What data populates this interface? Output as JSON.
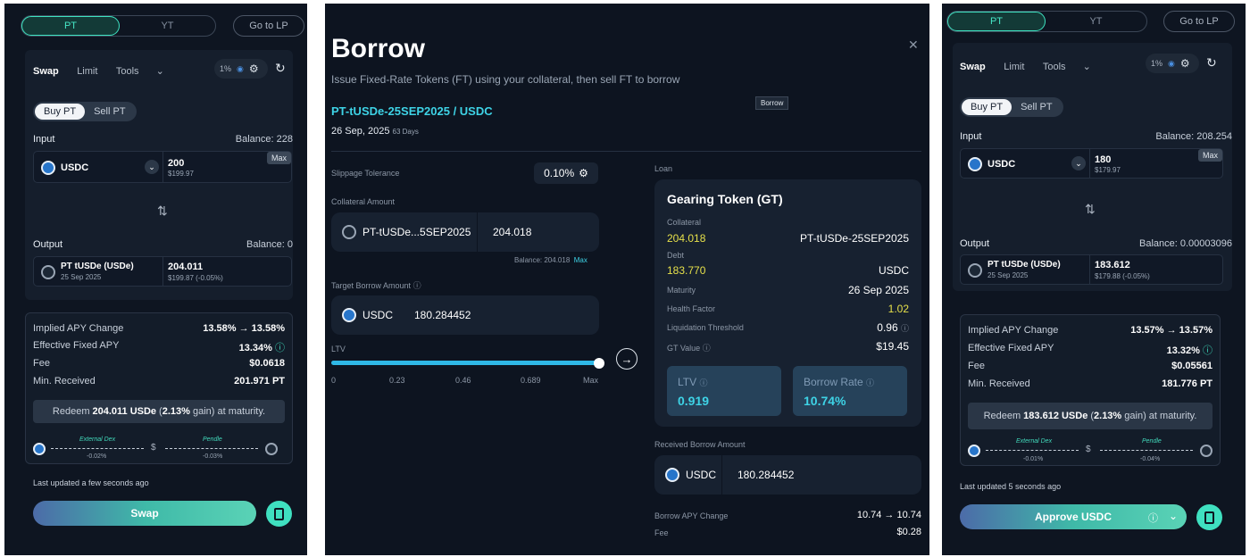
{
  "left": {
    "toggle": {
      "pt": "PT",
      "yt": "YT"
    },
    "go_lp": "Go to LP",
    "tabs": [
      "Swap",
      "Limit",
      "Tools"
    ],
    "slippage": "1%",
    "seg": [
      "Buy PT",
      "Sell PT"
    ],
    "input_label": "Input",
    "input_balance": "Balance: 228",
    "input_token": "USDC",
    "input_amount": "200",
    "input_usd": "$199.97",
    "max": "Max",
    "output_label": "Output",
    "output_balance": "Balance: 0",
    "output_token": "PT tUSDe (USDe)",
    "output_date": "25 Sep 2025",
    "output_amount": "204.011",
    "output_usd": "$199.87 (-0.05%)",
    "rows": [
      {
        "k": "Implied APY Change",
        "v": "13.58% → 13.58%"
      },
      {
        "k": "Effective Fixed APY",
        "v": "13.34%"
      },
      {
        "k": "Fee",
        "v": "$0.0618"
      },
      {
        "k": "Min. Received",
        "v": "201.971 PT"
      }
    ],
    "redeem_pre": "Redeem",
    "redeem_amt": "204.011 USDe",
    "redeem_mid": "(",
    "redeem_gain": "2.13%",
    "redeem_post": "gain) at maturity.",
    "route1": "External Dex",
    "route1_pct": "-0.02%",
    "route2": "Pendle",
    "route2_pct": "-0.03%",
    "updated": "Last updated a few seconds ago",
    "button": "Swap"
  },
  "mid": {
    "title": "Borrow",
    "subtitle": "Issue Fixed-Rate Tokens (FT) using your collateral, then sell FT to borrow",
    "tooltip": "Borrow",
    "pair": "PT-tUSDe-25SEP2025 / USDC",
    "date": "26 Sep, 2025",
    "days": "63 Days",
    "slippage_label": "Slippage Tolerance",
    "slippage_value": "0.10%",
    "collateral_label": "Collateral Amount",
    "collateral_token": "PT-tUSDe...5SEP2025",
    "collateral_amount": "204.018",
    "collateral_balance": "Balance: 204.018",
    "collateral_max": "Max",
    "target_label": "Target Borrow Amount",
    "target_token": "USDC",
    "target_amount": "180.284452",
    "ltv_label": "LTV",
    "ticks": [
      "0",
      "0.23",
      "0.46",
      "0.689",
      "Max"
    ],
    "ltv_slider_fraction": 1.0,
    "loan_label": "Loan",
    "gt_title": "Gearing Token (GT)",
    "collateral_k": "Collateral",
    "collateral_v": "204.018",
    "collateral_t": "PT-tUSDe-25SEP2025",
    "debt_k": "Debt",
    "debt_v": "183.770",
    "debt_t": "USDC",
    "details": [
      {
        "k": "Maturity",
        "v": "26 Sep 2025"
      },
      {
        "k": "Health Factor",
        "v": "1.02"
      },
      {
        "k": "Liquidation Threshold",
        "v": "0.96"
      },
      {
        "k": "GT Value",
        "v": "$19.45"
      }
    ],
    "ltv_box_label": "LTV",
    "ltv_box_value": "0.919",
    "rate_box_label": "Borrow Rate",
    "rate_box_value": "10.74%",
    "received_label": "Received Borrow Amount",
    "received_token": "USDC",
    "received_amount": "180.284452",
    "apy_change_k": "Borrow APY Change",
    "apy_change_v": "10.74 → 10.74",
    "fee_k": "Fee",
    "fee_v": "$0.28",
    "colors": {
      "accent": "#3ed3e6",
      "yellow": "#e6e04a"
    }
  },
  "right": {
    "toggle": {
      "pt": "PT",
      "yt": "YT"
    },
    "go_lp": "Go to LP",
    "tabs": [
      "Swap",
      "Limit",
      "Tools"
    ],
    "slippage": "1%",
    "seg": [
      "Buy PT",
      "Sell PT"
    ],
    "input_label": "Input",
    "input_balance": "Balance: 208.254",
    "input_token": "USDC",
    "input_amount": "180",
    "input_usd": "$179.97",
    "max": "Max",
    "output_label": "Output",
    "output_balance": "Balance: 0.00003096",
    "output_token": "PT tUSDe (USDe)",
    "output_date": "25 Sep 2025",
    "output_amount": "183.612",
    "output_usd": "$179.88 (-0.05%)",
    "rows": [
      {
        "k": "Implied APY Change",
        "v": "13.57% → 13.57%"
      },
      {
        "k": "Effective Fixed APY",
        "v": "13.32%"
      },
      {
        "k": "Fee",
        "v": "$0.05561"
      },
      {
        "k": "Min. Received",
        "v": "181.776 PT"
      }
    ],
    "redeem_pre": "Redeem",
    "redeem_amt": "183.612 USDe",
    "redeem_mid": "(",
    "redeem_gain": "2.13%",
    "redeem_post": "gain) at maturity.",
    "route1": "External Dex",
    "route1_pct": "-0.01%",
    "route2": "Pendle",
    "route2_pct": "-0.04%",
    "updated": "Last updated 5 seconds ago",
    "button": "Approve USDC"
  }
}
